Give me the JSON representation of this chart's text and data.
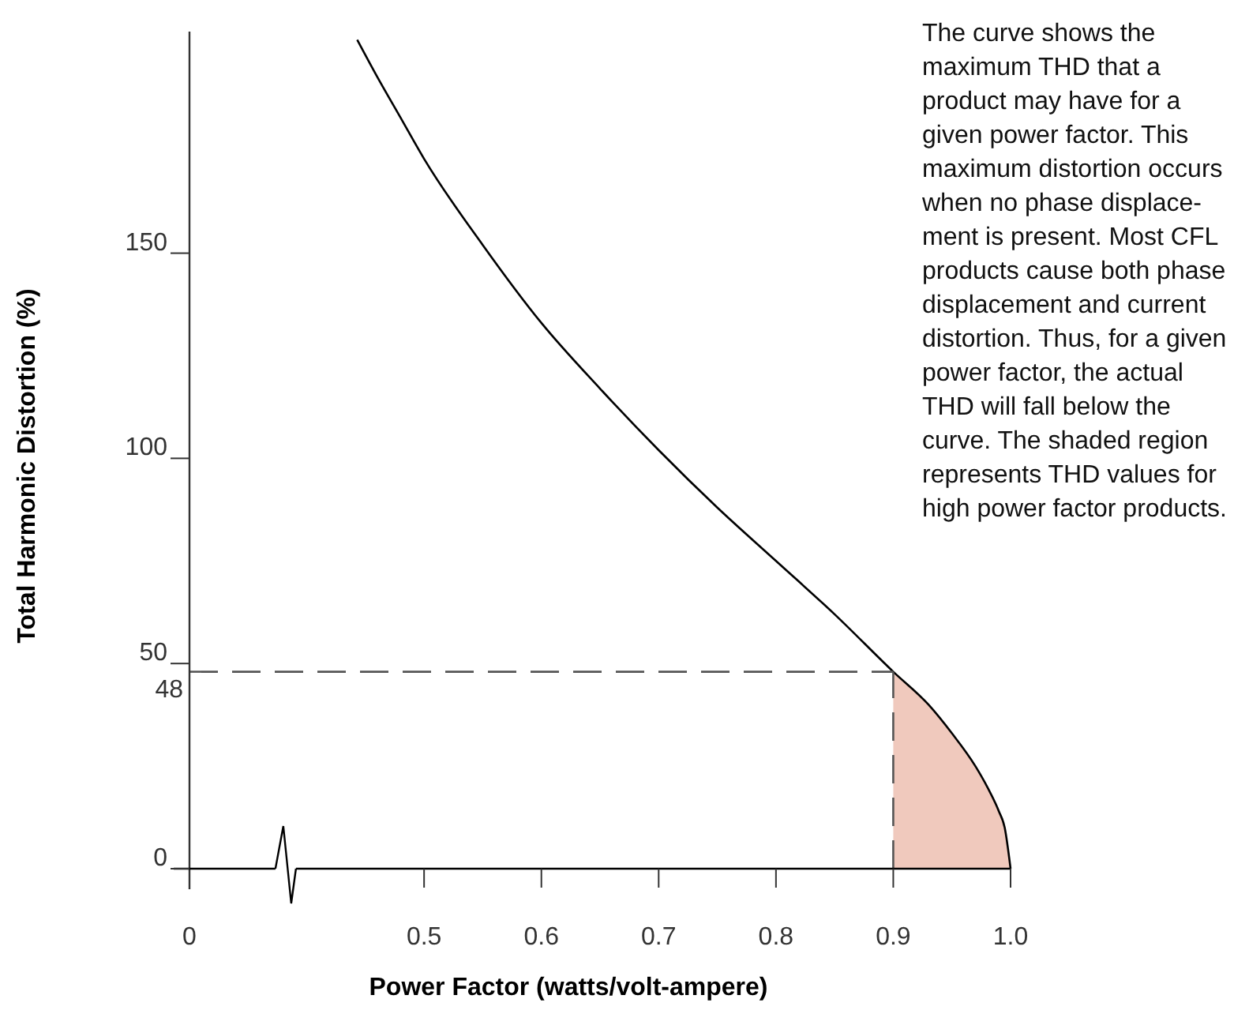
{
  "chart_data": {
    "type": "line",
    "xlabel": "Power Factor (watts/volt-ampere)",
    "ylabel": "Total Harmonic Distortion (%)",
    "xlim": [
      0.3,
      1.0
    ],
    "xticks": [
      {
        "value": 0.3,
        "label": "0"
      },
      {
        "value": 0.5,
        "label": "0.5"
      },
      {
        "value": 0.6,
        "label": "0.6"
      },
      {
        "value": 0.7,
        "label": "0.7"
      },
      {
        "value": 0.8,
        "label": "0.8"
      },
      {
        "value": 0.9,
        "label": "0.9"
      },
      {
        "value": 1.0,
        "label": "1.0"
      }
    ],
    "ylim": [
      0,
      204
    ],
    "yticks": [
      0,
      50,
      100,
      150
    ],
    "series": [
      {
        "color": "#000000",
        "x": [
          0.443,
          0.46,
          0.48,
          0.5,
          0.55,
          0.6,
          0.65,
          0.7,
          0.75,
          0.8,
          0.85,
          0.9,
          0.93,
          0.95,
          0.97,
          0.98,
          0.99,
          0.995,
          1.0
        ],
        "values": [
          202,
          193,
          183,
          173,
          152,
          133,
          117,
          102,
          88,
          75,
          62,
          48,
          40,
          33,
          25,
          20,
          14,
          10,
          0
        ]
      },
      {
        "type": "area",
        "color": "#f0c9bd",
        "x": [
          0.9,
          0.93,
          0.95,
          0.97,
          0.98,
          0.99,
          0.995,
          1.0
        ],
        "values": [
          48,
          40,
          33,
          25,
          20,
          14,
          10,
          0
        ]
      }
    ],
    "ref_lines": [
      {
        "axis": "y",
        "value": 48,
        "label": "48",
        "color": "#555555",
        "line_style": "dashed"
      },
      {
        "axis": "x",
        "value": 0.9,
        "label": null,
        "color": "#555555",
        "line_style": "dashed"
      }
    ],
    "annotations": [
      "The curve shows the\nmaximum THD that a\nproduct may have for a\ngiven power factor. This\nmaximum distortion occurs\nwhen no phase displace-\nment is present. Most CFL\nproducts cause both phase\ndisplacement and current\ndistortion. Thus, for a given\npower factor, the actual\nTHD will fall below the\ncurve. The shaded region\nrepresents THD values for\nhigh power factor products."
    ],
    "grid": false,
    "marker": "none"
  }
}
